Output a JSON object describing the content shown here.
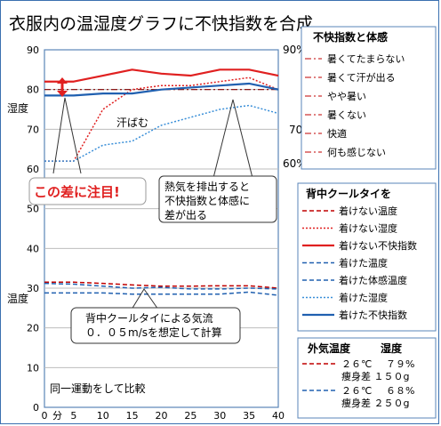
{
  "chart_data": {
    "type": "line",
    "title": "衣服内の温湿度グラフに不快指数を合成",
    "x": [
      0,
      5,
      10,
      15,
      20,
      25,
      30,
      35,
      40
    ],
    "xlim": [
      0,
      40
    ],
    "x_ticks": [
      "0",
      "5",
      "10",
      "15",
      "20",
      "25",
      "30",
      "35",
      "40"
    ],
    "x_unit_label": "分",
    "ylim": [
      0,
      90
    ],
    "y_ticks": [
      "0",
      "10",
      "20",
      "30",
      "40",
      "50",
      "60",
      "70",
      "80",
      "90"
    ],
    "left_axis_labels": {
      "upper": "湿度",
      "lower": "温度"
    },
    "right_axis_labels": [
      "90%",
      "70%",
      "60%"
    ],
    "grid": "horizontal",
    "series": [
      {
        "name": "着けない温度",
        "color": "#c00000",
        "dash": "dashed",
        "width": 1.5,
        "values": [
          31.5,
          31.5,
          31.2,
          30.8,
          30.5,
          30.5,
          30.6,
          30.6,
          30.0
        ]
      },
      {
        "name": "着けない湿度",
        "color": "#e02020",
        "dash": "dotted",
        "width": 1.5,
        "values": [
          62,
          62,
          75,
          80,
          81,
          81,
          82,
          83,
          80
        ]
      },
      {
        "name": "着けない不快指数",
        "color": "#e02020",
        "dash": "solid",
        "width": 2.2,
        "values": [
          82,
          82,
          83.5,
          85,
          84,
          83.5,
          85,
          85,
          83.5
        ]
      },
      {
        "name": "着けた温度",
        "color": "#2060b0",
        "dash": "dashed",
        "width": 1.5,
        "values": [
          31.2,
          31.0,
          30.5,
          30.0,
          30.2,
          29.8,
          29.8,
          30.0,
          29.8
        ]
      },
      {
        "name": "着けた体感温度",
        "color": "#2060b0",
        "dash": "dashed",
        "width": 1.5,
        "values": [
          28.8,
          28.8,
          28.8,
          28.5,
          28.5,
          28.5,
          28.5,
          29.0,
          28.2
        ]
      },
      {
        "name": "着けた湿度",
        "color": "#3a8fd8",
        "dash": "dotted",
        "width": 1.5,
        "values": [
          62,
          62,
          66,
          67,
          71,
          73,
          75,
          76,
          74
        ]
      },
      {
        "name": "着けた不快指数",
        "color": "#2060b0",
        "dash": "solid",
        "width": 2.2,
        "values": [
          78.5,
          78.5,
          79,
          79,
          80,
          80.5,
          81,
          81.5,
          80
        ]
      }
    ],
    "ref_lines": [
      {
        "value": 80,
        "color": "#800000",
        "dash": "dashdot"
      }
    ],
    "annotations": {
      "callout_big": "この差に注目!",
      "sweat": "汗ばむ",
      "heat_note": [
        "熱気を排出すると",
        "不快指数と体感に",
        "差が出る"
      ],
      "flow_note": [
        "背中クールタイによる気流",
        "０．０５m/sを想定して計算"
      ],
      "exercise": "同一運動をして比較"
    },
    "discomfort_legend": {
      "title": "不快指数と体感",
      "levels": [
        "暑くてたまらない",
        "暑くて汗が出る",
        "やや暑い",
        "暑くない",
        "快適",
        "何も感じない"
      ]
    },
    "series_legend_title": "背中クールタイを",
    "conditions": {
      "headers": [
        "外気温度",
        "湿度"
      ],
      "rows": [
        {
          "temp": "２６℃",
          "humidity": "７９%",
          "diff": "痩身差  １５０g",
          "color": "#c00000"
        },
        {
          "temp": "２６℃",
          "humidity": "６８%",
          "diff": "痩身差  ２５０g",
          "color": "#2060b0"
        }
      ]
    }
  }
}
